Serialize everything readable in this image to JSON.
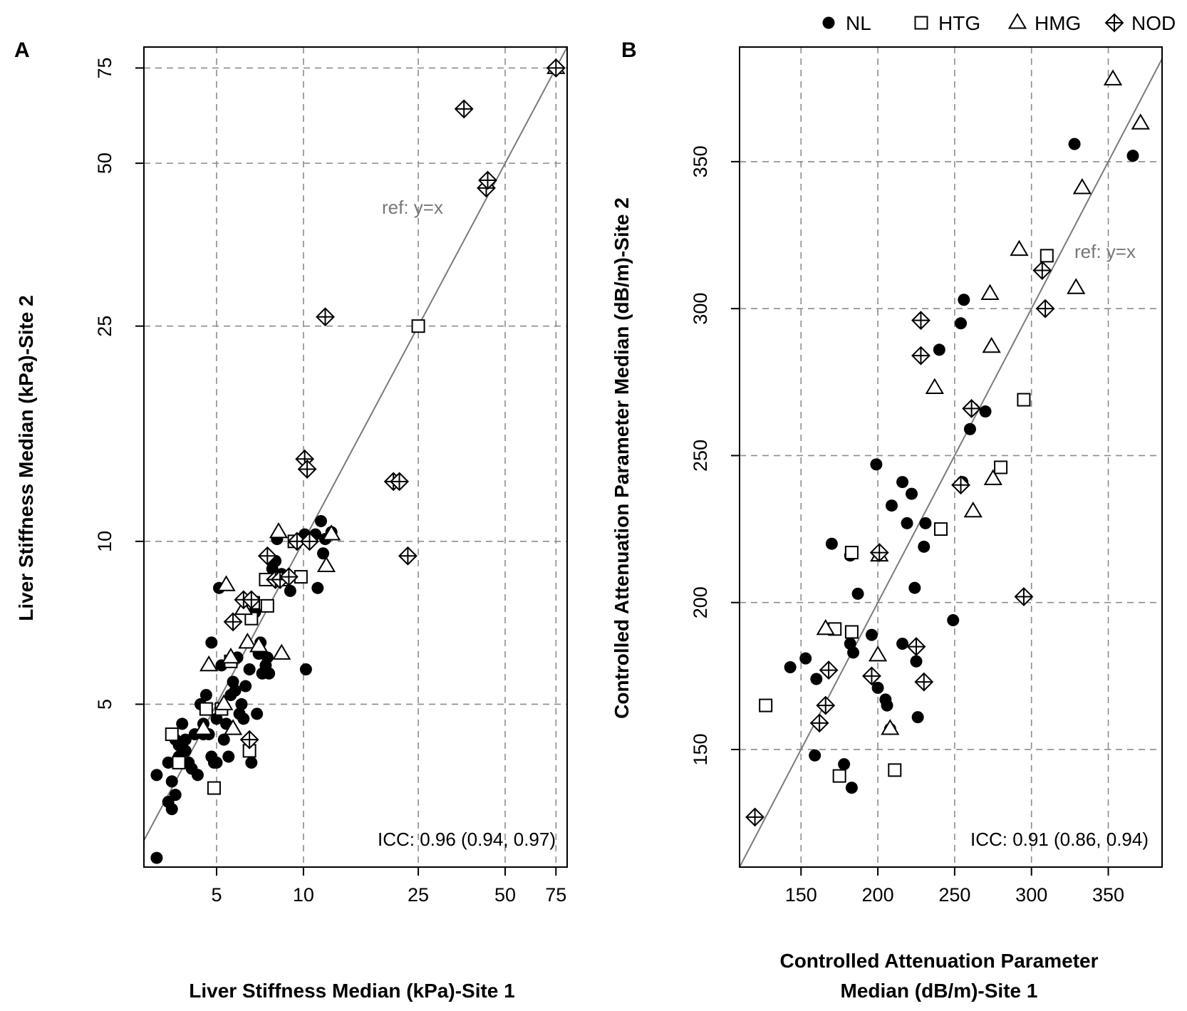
{
  "legend": {
    "entries": [
      {
        "key": "NL",
        "label": "NL",
        "shape": "dot"
      },
      {
        "key": "HTG",
        "label": "HTG",
        "shape": "square"
      },
      {
        "key": "HMG",
        "label": "HMG",
        "shape": "triangle"
      },
      {
        "key": "NOD",
        "label": "NOD",
        "shape": "diamond-plus"
      }
    ],
    "placement": "top"
  },
  "chart_data": [
    {
      "panel": "A",
      "type": "scatter",
      "xlabel": "Liver Stiffness Median (kPa)-Site 1",
      "ylabel": "Liver Stiffness Median (kPa)-Site 2",
      "xscale": "log",
      "yscale": "log",
      "xlim": [
        2.8,
        82
      ],
      "ylim": [
        2.5,
        82
      ],
      "xticks": [
        5,
        10,
        25,
        50,
        75
      ],
      "yticks": [
        5,
        10,
        25,
        50,
        75
      ],
      "grid": true,
      "reference_line": {
        "label": "ref: y=x"
      },
      "annotation": "ICC: 0.96 (0.94, 0.97)",
      "series": [
        {
          "key": "NL",
          "points": [
            [
              3.1,
              3.7
            ],
            [
              3.1,
              2.6
            ],
            [
              3.4,
              3.9
            ],
            [
              3.4,
              3.3
            ],
            [
              3.5,
              3.6
            ],
            [
              3.5,
              3.2
            ],
            [
              3.6,
              4.3
            ],
            [
              3.6,
              3.4
            ],
            [
              3.7,
              4.0
            ],
            [
              3.7,
              4.2
            ],
            [
              3.8,
              4.6
            ],
            [
              3.9,
              4.3
            ],
            [
              3.9,
              4.1
            ],
            [
              4.0,
              3.9
            ],
            [
              4.1,
              3.8
            ],
            [
              4.2,
              4.4
            ],
            [
              4.3,
              3.7
            ],
            [
              4.4,
              5.0
            ],
            [
              4.5,
              4.6
            ],
            [
              4.5,
              4.4
            ],
            [
              4.6,
              5.2
            ],
            [
              4.7,
              4.4
            ],
            [
              4.8,
              4.0
            ],
            [
              4.8,
              6.5
            ],
            [
              4.9,
              3.9
            ],
            [
              5.0,
              4.7
            ],
            [
              5.0,
              3.9
            ],
            [
              5.1,
              8.2
            ],
            [
              5.2,
              5.9
            ],
            [
              5.3,
              4.3
            ],
            [
              5.4,
              4.6
            ],
            [
              5.5,
              4.0
            ],
            [
              5.6,
              5.2
            ],
            [
              5.7,
              5.5
            ],
            [
              5.8,
              5.3
            ],
            [
              5.9,
              6.1
            ],
            [
              6.0,
              4.8
            ],
            [
              6.1,
              5.0
            ],
            [
              6.2,
              4.7
            ],
            [
              6.3,
              5.4
            ],
            [
              6.4,
              7.6
            ],
            [
              6.5,
              5.8
            ],
            [
              6.6,
              3.9
            ],
            [
              6.8,
              7.4
            ],
            [
              6.9,
              4.8
            ],
            [
              7.0,
              6.2
            ],
            [
              7.1,
              6.5
            ],
            [
              7.2,
              5.7
            ],
            [
              7.4,
              5.9
            ],
            [
              7.5,
              6.1
            ],
            [
              7.6,
              5.7
            ],
            [
              7.8,
              8.9
            ],
            [
              8.0,
              9.2
            ],
            [
              8.1,
              10.1
            ],
            [
              8.4,
              8.7
            ],
            [
              9.0,
              8.1
            ],
            [
              9.6,
              10.1
            ],
            [
              10.1,
              10.3
            ],
            [
              10.2,
              5.8
            ],
            [
              11.0,
              10.3
            ],
            [
              11.2,
              8.2
            ],
            [
              11.5,
              10.9
            ],
            [
              11.7,
              9.5
            ],
            [
              11.9,
              10.1
            ],
            [
              12.5,
              10.4
            ]
          ]
        },
        {
          "key": "HTG",
          "points": [
            [
              3.5,
              4.4
            ],
            [
              3.7,
              3.9
            ],
            [
              4.6,
              4.9
            ],
            [
              4.9,
              3.5
            ],
            [
              5.2,
              4.9
            ],
            [
              5.6,
              6.0
            ],
            [
              6.5,
              4.1
            ],
            [
              6.6,
              7.2
            ],
            [
              6.7,
              7.7
            ],
            [
              7.4,
              8.5
            ],
            [
              7.5,
              7.6
            ],
            [
              8.5,
              8.5
            ],
            [
              9.3,
              10.0
            ],
            [
              9.8,
              8.6
            ],
            [
              25.0,
              25.0
            ]
          ]
        },
        {
          "key": "HMG",
          "points": [
            [
              4.5,
              4.5
            ],
            [
              4.7,
              5.9
            ],
            [
              5.3,
              5.0
            ],
            [
              5.4,
              8.3
            ],
            [
              5.6,
              6.1
            ],
            [
              5.7,
              4.5
            ],
            [
              6.2,
              7.5
            ],
            [
              6.4,
              6.5
            ],
            [
              7.0,
              6.4
            ],
            [
              8.2,
              10.4
            ],
            [
              8.4,
              6.2
            ],
            [
              12.0,
              9.0
            ],
            [
              12.5,
              10.3
            ],
            [
              75.0,
              75.0
            ]
          ]
        },
        {
          "key": "NOD",
          "points": [
            [
              5.7,
              7.1
            ],
            [
              6.2,
              7.8
            ],
            [
              6.5,
              4.3
            ],
            [
              6.6,
              7.8
            ],
            [
              7.5,
              9.4
            ],
            [
              8.0,
              8.5
            ],
            [
              8.3,
              8.5
            ],
            [
              8.9,
              8.6
            ],
            [
              9.5,
              10.0
            ],
            [
              10.1,
              14.2
            ],
            [
              10.3,
              13.6
            ],
            [
              10.5,
              10.0
            ],
            [
              11.9,
              26.0
            ],
            [
              20.5,
              12.9
            ],
            [
              21.5,
              12.9
            ],
            [
              23.0,
              9.4
            ],
            [
              36.0,
              63.0
            ],
            [
              43.0,
              45.0
            ],
            [
              43.5,
              46.5
            ],
            [
              75.0,
              75.0
            ]
          ]
        }
      ]
    },
    {
      "panel": "B",
      "type": "scatter",
      "xlabel": "Controlled Attenuation Parameter Median (dB/m)-Site 1",
      "ylabel": "Controlled Attenuation Parameter Median (dB/m)-Site 2",
      "xlim": [
        110,
        385
      ],
      "ylim": [
        110,
        389
      ],
      "xticks": [
        150,
        200,
        250,
        300,
        350
      ],
      "yticks": [
        150,
        200,
        250,
        300,
        350
      ],
      "grid": true,
      "reference_line": {
        "label": "ref: y=x"
      },
      "annotation": "ICC: 0.91 (0.86, 0.94)",
      "series": [
        {
          "key": "NL",
          "points": [
            [
              143,
              178
            ],
            [
              153,
              181
            ],
            [
              159,
              148
            ],
            [
              160,
              174
            ],
            [
              170,
              220
            ],
            [
              178,
              145
            ],
            [
              182,
              216
            ],
            [
              182,
              186
            ],
            [
              183,
              137
            ],
            [
              184,
              183
            ],
            [
              187,
              203
            ],
            [
              196,
              189
            ],
            [
              199,
              247
            ],
            [
              200,
              171
            ],
            [
              205,
              167
            ],
            [
              206,
              165
            ],
            [
              208,
              157
            ],
            [
              209,
              233
            ],
            [
              216,
              241
            ],
            [
              216,
              186
            ],
            [
              219,
              227
            ],
            [
              222,
              237
            ],
            [
              224,
              205
            ],
            [
              225,
              180
            ],
            [
              226,
              161
            ],
            [
              230,
              219
            ],
            [
              231,
              227
            ],
            [
              240,
              286
            ],
            [
              249,
              194
            ],
            [
              254,
              295
            ],
            [
              256,
              303
            ],
            [
              260,
              259
            ],
            [
              262,
              266
            ],
            [
              270,
              265
            ],
            [
              255,
              241
            ],
            [
              328,
              356
            ],
            [
              366,
              352
            ]
          ]
        },
        {
          "key": "HTG",
          "points": [
            [
              127,
              165
            ],
            [
              172,
              191
            ],
            [
              175,
              141
            ],
            [
              183,
              217
            ],
            [
              183,
              190
            ],
            [
              211,
              143
            ],
            [
              241,
              225
            ],
            [
              280,
              246
            ],
            [
              295,
              269
            ],
            [
              310,
              318
            ]
          ]
        },
        {
          "key": "HMG",
          "points": [
            [
              166,
              191
            ],
            [
              200,
              182
            ],
            [
              201,
              216
            ],
            [
              208,
              157
            ],
            [
              237,
              273
            ],
            [
              262,
              231
            ],
            [
              273,
              305
            ],
            [
              274,
              287
            ],
            [
              275,
              242
            ],
            [
              292,
              320
            ],
            [
              329,
              307
            ],
            [
              333,
              341
            ],
            [
              353,
              378
            ],
            [
              371,
              363
            ]
          ]
        },
        {
          "key": "NOD",
          "points": [
            [
              120,
              127
            ],
            [
              162,
              159
            ],
            [
              166,
              165
            ],
            [
              168,
              177
            ],
            [
              196,
              175
            ],
            [
              201,
              217
            ],
            [
              225,
              185
            ],
            [
              228,
              296
            ],
            [
              228,
              284
            ],
            [
              230,
              173
            ],
            [
              254,
              240
            ],
            [
              261,
              266
            ],
            [
              295,
              202
            ],
            [
              307,
              313
            ],
            [
              309,
              300
            ]
          ]
        }
      ]
    }
  ]
}
